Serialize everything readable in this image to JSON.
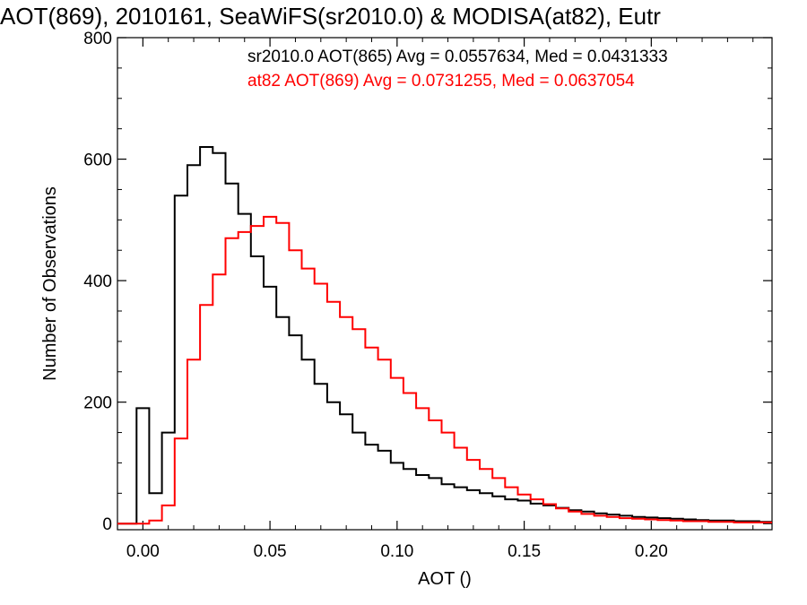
{
  "chart_data": {
    "type": "line",
    "title": "AOT(869), 2010161, SeaWiFS(sr2010.0) & MODISA(at82), Eutr",
    "xlabel": "AOT ()",
    "ylabel": "Number of Observations",
    "xlim": [
      -0.01,
      0.2475
    ],
    "ylim": [
      -10,
      800
    ],
    "x_ticks": [
      0.0,
      0.05,
      0.1,
      0.15,
      0.2
    ],
    "x_tick_labels": [
      "0.00",
      "0.05",
      "0.10",
      "0.15",
      "0.20"
    ],
    "y_ticks": [
      0,
      200,
      400,
      600,
      800
    ],
    "y_tick_labels": [
      "0",
      "200",
      "400",
      "600",
      "800"
    ],
    "grid": false,
    "annotations": [
      {
        "text": "sr2010.0 AOT(865) Avg = 0.0557634, Med = 0.0431333",
        "color": "#000000"
      },
      {
        "text": "at82 AOT(869) Avg = 0.0731255, Med = 0.0637054",
        "color": "#ff0000"
      }
    ],
    "series": [
      {
        "color": "#000000",
        "x": [
          0.0,
          0.005,
          0.01,
          0.015,
          0.02,
          0.025,
          0.03,
          0.035,
          0.04,
          0.045,
          0.05,
          0.055,
          0.06,
          0.065,
          0.07,
          0.075,
          0.08,
          0.085,
          0.09,
          0.095,
          0.1,
          0.105,
          0.11,
          0.115,
          0.12,
          0.125,
          0.13,
          0.135,
          0.14,
          0.145,
          0.15,
          0.155,
          0.16,
          0.165,
          0.17,
          0.175,
          0.18,
          0.185,
          0.19,
          0.195,
          0.2,
          0.205,
          0.21,
          0.215,
          0.22,
          0.225,
          0.23,
          0.235,
          0.24,
          0.245
        ],
        "values": [
          190,
          50,
          150,
          540,
          590,
          620,
          610,
          560,
          510,
          440,
          390,
          340,
          310,
          270,
          230,
          200,
          180,
          150,
          130,
          120,
          100,
          90,
          80,
          75,
          65,
          60,
          55,
          50,
          45,
          40,
          38,
          33,
          30,
          26,
          22,
          20,
          17,
          15,
          13,
          11,
          10,
          9,
          8,
          7,
          6,
          5,
          5,
          4,
          4,
          3
        ]
      },
      {
        "color": "#ff0000",
        "x": [
          0.0,
          0.005,
          0.01,
          0.015,
          0.02,
          0.025,
          0.03,
          0.035,
          0.04,
          0.045,
          0.05,
          0.055,
          0.06,
          0.065,
          0.07,
          0.075,
          0.08,
          0.085,
          0.09,
          0.095,
          0.1,
          0.105,
          0.11,
          0.115,
          0.12,
          0.125,
          0.13,
          0.135,
          0.14,
          0.145,
          0.15,
          0.155,
          0.16,
          0.165,
          0.17,
          0.175,
          0.18,
          0.185,
          0.19,
          0.195,
          0.2,
          0.205,
          0.21,
          0.215,
          0.22,
          0.225,
          0.23,
          0.235,
          0.24,
          0.245
        ],
        "values": [
          0,
          5,
          30,
          140,
          270,
          360,
          410,
          470,
          480,
          490,
          505,
          495,
          450,
          420,
          395,
          365,
          340,
          320,
          290,
          270,
          240,
          215,
          190,
          170,
          150,
          125,
          105,
          90,
          75,
          60,
          48,
          40,
          32,
          25,
          20,
          16,
          13,
          11,
          9,
          8,
          7,
          6,
          5,
          4,
          4,
          3,
          3,
          2,
          2,
          2
        ]
      }
    ]
  }
}
